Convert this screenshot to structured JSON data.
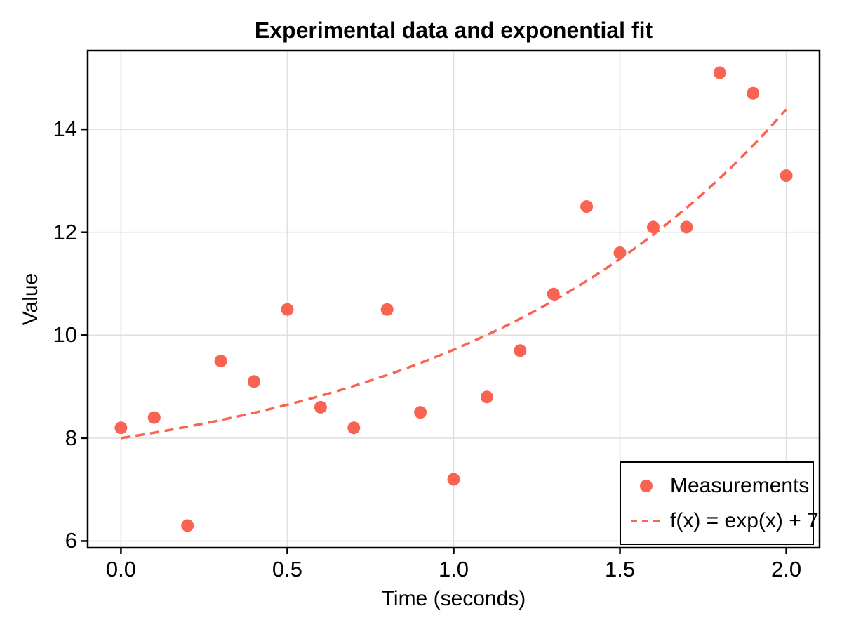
{
  "colors": {
    "accent": "#f96351",
    "grid": "#e0e0e0",
    "axis": "#000000",
    "background": "#ffffff"
  },
  "chart_data": {
    "type": "scatter",
    "title": "Experimental data and exponential fit",
    "xlabel": "Time (seconds)",
    "ylabel": "Value",
    "x_ticks": [
      "0.0",
      "0.5",
      "1.0",
      "1.5",
      "2.0"
    ],
    "x_tick_values": [
      0,
      0.5,
      1,
      1.5,
      2
    ],
    "y_ticks": [
      "6",
      "8",
      "10",
      "12",
      "14"
    ],
    "y_tick_values": [
      6,
      8,
      10,
      12,
      14
    ],
    "xlim": [
      -0.1,
      2.1
    ],
    "ylim": [
      5.87,
      15.53
    ],
    "grid": true,
    "legend_position": "lower right",
    "series": [
      {
        "name": "Measurements",
        "type": "scatter",
        "x": [
          0.0,
          0.1,
          0.2,
          0.3,
          0.4,
          0.5,
          0.6,
          0.7,
          0.8,
          0.9,
          1.0,
          1.1,
          1.2,
          1.3,
          1.4,
          1.5,
          1.6,
          1.7,
          1.8,
          1.9,
          2.0
        ],
        "y": [
          8.2,
          8.4,
          6.3,
          9.5,
          9.1,
          10.5,
          8.6,
          8.2,
          10.5,
          8.5,
          7.2,
          8.8,
          9.7,
          10.8,
          12.5,
          11.6,
          12.1,
          12.1,
          15.1,
          14.7,
          13.1
        ]
      },
      {
        "name": "f(x) = exp(x) + 7",
        "type": "dashed-line",
        "formula": "exp(x) + 7",
        "scale": 1,
        "offset": 7,
        "x_start": 0,
        "x_end": 2
      }
    ]
  }
}
